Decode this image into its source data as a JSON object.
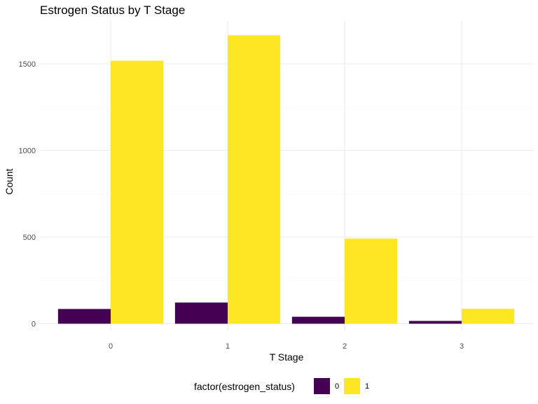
{
  "chart_data": {
    "type": "bar",
    "title": "Estrogen Status by T Stage",
    "xlabel": "T Stage",
    "ylabel": "Count",
    "categories": [
      "0",
      "1",
      "2",
      "3"
    ],
    "series": [
      {
        "name": "0",
        "color": "#440154",
        "values": [
          85,
          122,
          40,
          16
        ]
      },
      {
        "name": "1",
        "color": "#FDE725",
        "values": [
          1518,
          1665,
          491,
          86
        ]
      }
    ],
    "ylim": [
      0,
      1700
    ],
    "yticks": [
      0,
      500,
      1000,
      1500
    ],
    "yticks_labels": [
      "0",
      "500",
      "1000",
      "1500"
    ],
    "grid": true,
    "legend": {
      "title": "factor(estrogen_status)",
      "position": "bottom"
    }
  }
}
